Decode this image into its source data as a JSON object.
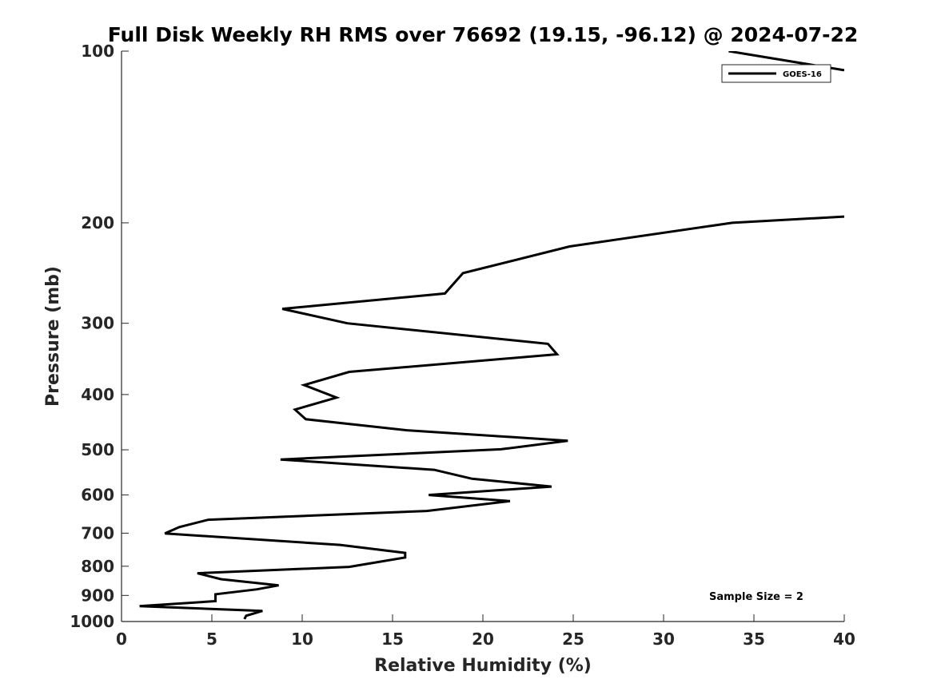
{
  "chart_data": {
    "type": "line",
    "title": "Full Disk Weekly RH RMS over 76692 (19.15, -96.12) @ 2024-07-22",
    "xlabel": "Relative Humidity (%)",
    "ylabel": "Pressure (mb)",
    "xlim": [
      0,
      40
    ],
    "ylim": [
      100,
      1000
    ],
    "yscale": "log",
    "yreversed": true,
    "x_ticks": [
      "0",
      "5",
      "10",
      "15",
      "20",
      "25",
      "30",
      "35",
      "40"
    ],
    "y_ticks": [
      "100",
      "200",
      "300",
      "400",
      "500",
      "600",
      "700",
      "800",
      "900",
      "1000"
    ],
    "grid": false,
    "legend_position": "top-right",
    "annotation": "Sample Size = 2",
    "series": [
      {
        "name": "GOES-16",
        "color": "#000000",
        "points": [
          [
            33.6,
            100
          ],
          [
            40,
            108
          ],
          [
            null,
            null
          ],
          [
            40,
            195
          ],
          [
            33.8,
            200
          ],
          [
            24.8,
            220
          ],
          [
            18.9,
            245
          ],
          [
            17.9,
            266
          ],
          [
            8.9,
            283
          ],
          [
            12.5,
            300
          ],
          [
            23.6,
            326
          ],
          [
            24.1,
            340
          ],
          [
            12.6,
            365
          ],
          [
            10.1,
            385
          ],
          [
            11.9,
            405
          ],
          [
            9.6,
            425
          ],
          [
            10.2,
            442
          ],
          [
            15.8,
            462
          ],
          [
            24.7,
            482
          ],
          [
            21.0,
            499
          ],
          [
            8.8,
            520
          ],
          [
            17.3,
            542
          ],
          [
            19.4,
            562
          ],
          [
            23.8,
            580
          ],
          [
            17.0,
            600
          ],
          [
            21.5,
            615
          ],
          [
            16.9,
            640
          ],
          [
            4.8,
            663
          ],
          [
            3.2,
            683
          ],
          [
            2.4,
            701
          ],
          [
            12.1,
            734
          ],
          [
            15.7,
            758
          ],
          [
            15.7,
            772
          ],
          [
            12.6,
            802
          ],
          [
            4.2,
            823
          ],
          [
            5.5,
            843
          ],
          [
            8.7,
            864
          ],
          [
            7.5,
            878
          ],
          [
            5.2,
            896
          ],
          [
            5.2,
            921
          ],
          [
            1.0,
            940
          ],
          [
            7.8,
            958
          ],
          [
            6.9,
            977
          ],
          [
            6.8,
            990
          ]
        ]
      }
    ]
  }
}
